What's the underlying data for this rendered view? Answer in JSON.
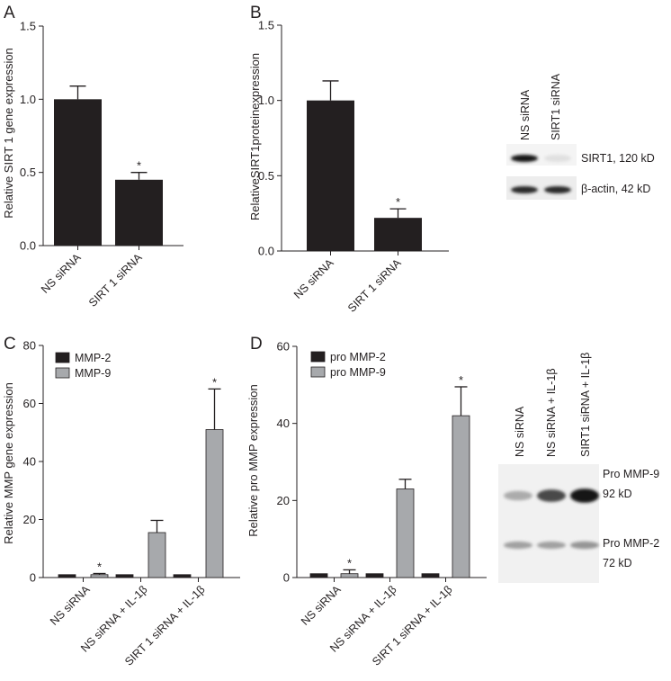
{
  "figure": {
    "panels": [
      {
        "id": "A",
        "letter": "A"
      },
      {
        "id": "B",
        "letter": "B"
      },
      {
        "id": "C",
        "letter": "C"
      },
      {
        "id": "D",
        "letter": "D"
      }
    ]
  },
  "chart_data": [
    {
      "panel": "A",
      "type": "bar",
      "title": "",
      "xlabel": "",
      "ylabel": "Relative SIRT 1 gene expression",
      "categories": [
        "NS siRNA",
        "SIRT 1 siRNA"
      ],
      "values": [
        1.0,
        0.45
      ],
      "errors": [
        0.09,
        0.05
      ],
      "significance": [
        "",
        "*"
      ],
      "ylim": [
        0,
        1.5
      ],
      "yticks": [
        "0.0",
        "0.5",
        "1.0",
        "1.5"
      ],
      "colors": {
        "bar": "#231f20"
      },
      "grid": false
    },
    {
      "panel": "B",
      "type": "bar",
      "title": "",
      "xlabel": "",
      "ylabel": "RelativeSIRT1proteinexpression",
      "categories": [
        "NS siRNA",
        "SIRT 1 siRNA"
      ],
      "values": [
        1.0,
        0.22
      ],
      "errors": [
        0.13,
        0.06
      ],
      "significance": [
        "",
        "*"
      ],
      "ylim": [
        0,
        1.5
      ],
      "yticks": [
        "0.0",
        "0.5",
        "1.0",
        "1.5"
      ],
      "colors": {
        "bar": "#231f20"
      },
      "grid": false
    },
    {
      "panel": "C",
      "type": "bar",
      "title": "",
      "xlabel": "",
      "ylabel": "Relative MMP gene expression",
      "categories": [
        "NS siRNA",
        "NS siRNA + IL-1β",
        "SIRT 1 siRNA + IL-1β"
      ],
      "series": [
        {
          "name": "MMP-2",
          "values": [
            1,
            1,
            1
          ],
          "errors": [
            0,
            0,
            0
          ],
          "significance": [
            "",
            "",
            ""
          ],
          "color": "#231f20"
        },
        {
          "name": "MMP-9",
          "values": [
            1,
            15.5,
            51
          ],
          "errors": [
            0.4,
            4.2,
            14
          ],
          "significance": [
            "*",
            "",
            "*"
          ],
          "color": "#a7a9ac"
        }
      ],
      "ylim": [
        0,
        80
      ],
      "yticks": [
        "0",
        "20",
        "40",
        "60",
        "80"
      ],
      "legend": "top-left",
      "grid": false
    },
    {
      "panel": "D",
      "type": "bar",
      "title": "",
      "xlabel": "",
      "ylabel": "Relative pro MMP expression",
      "categories": [
        "NS siRNA",
        "NS siRNA + IL-1β",
        "SIRT 1 siRNA + IL-1β"
      ],
      "series": [
        {
          "name": "pro MMP-2",
          "values": [
            1,
            1,
            1
          ],
          "errors": [
            0,
            0,
            0
          ],
          "significance": [
            "",
            "",
            ""
          ],
          "color": "#231f20"
        },
        {
          "name": "pro MMP-9",
          "values": [
            1,
            23,
            42
          ],
          "errors": [
            1,
            2.5,
            7.5
          ],
          "significance": [
            "*",
            "",
            "*"
          ],
          "color": "#a7a9ac"
        }
      ],
      "ylim": [
        0,
        60
      ],
      "yticks": [
        "0",
        "20",
        "40",
        "60"
      ],
      "legend": "top-left",
      "grid": false
    }
  ],
  "blots": {
    "b": {
      "lanes": [
        "NS siRNA",
        "SIRT1 siRNA"
      ],
      "bands": [
        {
          "label": "SIRT1, 120 kD",
          "intensity": [
            1.0,
            0.05
          ]
        },
        {
          "label": "β-actin, 42 kD",
          "intensity": [
            0.9,
            0.9
          ]
        }
      ]
    },
    "d": {
      "lanes": [
        "NS siRNA",
        "NS siRNA + IL-1β",
        "SIRT1 siRNA + IL-1β"
      ],
      "bands": [
        {
          "label": "Pro MMP-9",
          "sublabel": "92 kD",
          "intensity": [
            0.3,
            0.75,
            1.0
          ]
        },
        {
          "label": "Pro MMP-2",
          "sublabel": "72 kD",
          "intensity": [
            0.35,
            0.35,
            0.4
          ]
        }
      ]
    }
  }
}
